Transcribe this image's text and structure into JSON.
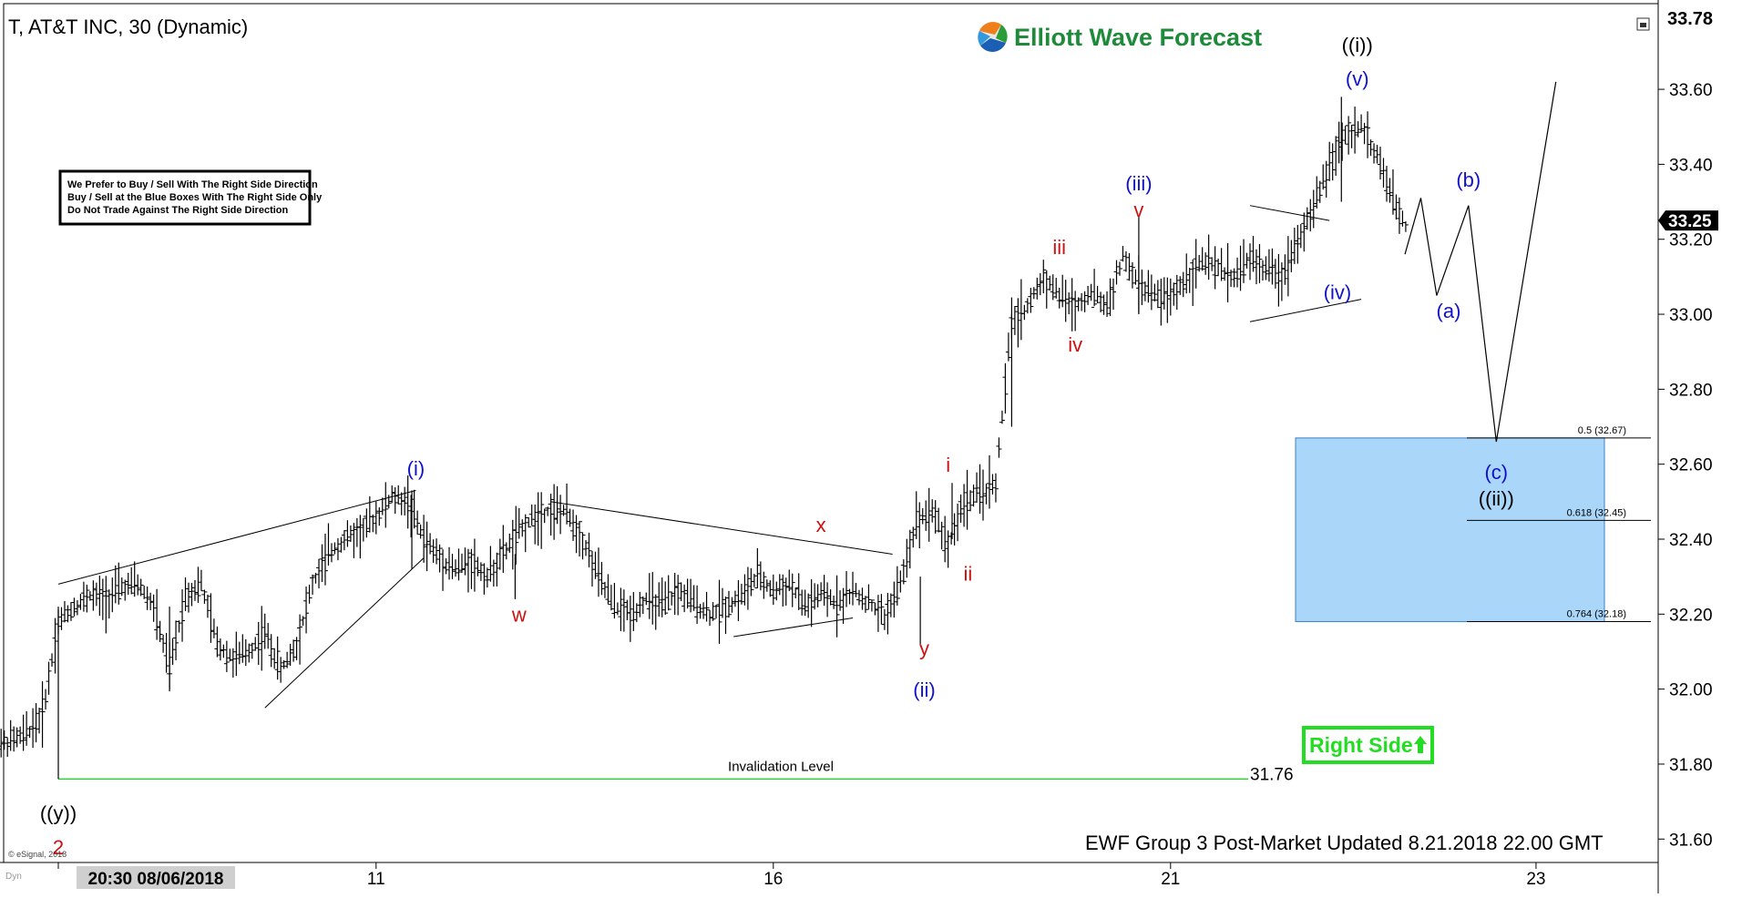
{
  "header": {
    "symbol_title": "T, AT&T INC, 30 (Dynamic)",
    "brand": "Elliott Wave Forecast",
    "footer_update": "EWF Group 3 Post-Market Updated 8.21.2018 22.00 GMT",
    "copyright": "© eSignal, 2018",
    "corner_tag": "Dyn"
  },
  "notice_box": {
    "lines": [
      "We Prefer to Buy / Sell With The Right Side Direction",
      "Buy / Sell at the Blue Boxes With The Right Side Only",
      "Do Not Trade Against The Right Side Direction"
    ]
  },
  "right_side_badge": {
    "label": "Right Side",
    "arrow": "up-arrow-icon"
  },
  "colors": {
    "blue_label": "#1111cc",
    "red_label": "#cc1111",
    "box_fill": "#a9d6f9",
    "box_stroke": "#3a80c8",
    "invalidation_line": "#33cc33",
    "badge_green": "#22dd22",
    "bar": "#000000"
  },
  "chart_data": {
    "type": "ohlc",
    "ylim": [
      31.53,
      33.78
    ],
    "y_ticks": [
      "33.60",
      "33.40",
      "33.20",
      "33.00",
      "32.80",
      "32.60",
      "32.40",
      "32.20",
      "32.00",
      "31.80",
      "31.60"
    ],
    "y_top_label": "33.78",
    "last_price": "33.25",
    "x_ticks": [
      {
        "label": "20:30 08/06/2018",
        "t": 0
      },
      {
        "label": "11",
        "t": 4
      },
      {
        "label": "16",
        "t": 9
      },
      {
        "label": "21",
        "t": 14
      },
      {
        "label": "23",
        "t": 18.6
      }
    ],
    "invalidation": {
      "label": "Invalidation Level",
      "value": 31.76,
      "value_label": "31.76"
    },
    "blue_box": {
      "top": 32.67,
      "bottom": 32.18,
      "fib_levels": [
        {
          "value": 32.67,
          "label": "0.5 (32.67)"
        },
        {
          "value": 32.45,
          "label": "0.618 (32.45)"
        },
        {
          "value": 32.18,
          "label": "0.764 (32.18)"
        }
      ]
    },
    "price_path": [
      [
        -0.8,
        31.85
      ],
      [
        -0.6,
        31.86
      ],
      [
        -0.4,
        31.88
      ],
      [
        -0.2,
        31.93
      ],
      [
        0.0,
        32.18
      ],
      [
        0.2,
        32.22
      ],
      [
        0.4,
        32.25
      ],
      [
        0.6,
        32.24
      ],
      [
        0.8,
        32.27
      ],
      [
        1.0,
        32.28
      ],
      [
        1.2,
        32.22
      ],
      [
        1.4,
        32.05
      ],
      [
        1.6,
        32.25
      ],
      [
        1.8,
        32.28
      ],
      [
        2.0,
        32.12
      ],
      [
        2.2,
        32.08
      ],
      [
        2.4,
        32.1
      ],
      [
        2.6,
        32.15
      ],
      [
        2.8,
        32.05
      ],
      [
        3.0,
        32.12
      ],
      [
        3.2,
        32.28
      ],
      [
        3.4,
        32.36
      ],
      [
        3.6,
        32.4
      ],
      [
        3.8,
        32.42
      ],
      [
        4.0,
        32.46
      ],
      [
        4.2,
        32.51
      ],
      [
        4.4,
        32.5
      ],
      [
        4.6,
        32.4
      ],
      [
        4.8,
        32.35
      ],
      [
        5.0,
        32.32
      ],
      [
        5.2,
        32.34
      ],
      [
        5.4,
        32.3
      ],
      [
        5.6,
        32.36
      ],
      [
        5.8,
        32.42
      ],
      [
        6.0,
        32.46
      ],
      [
        6.2,
        32.48
      ],
      [
        6.4,
        32.47
      ],
      [
        6.6,
        32.4
      ],
      [
        6.8,
        32.3
      ],
      [
        7.0,
        32.22
      ],
      [
        7.2,
        32.2
      ],
      [
        7.4,
        32.24
      ],
      [
        7.6,
        32.22
      ],
      [
        7.8,
        32.26
      ],
      [
        8.0,
        32.23
      ],
      [
        8.2,
        32.2
      ],
      [
        8.4,
        32.22
      ],
      [
        8.6,
        32.25
      ],
      [
        8.8,
        32.3
      ],
      [
        9.0,
        32.26
      ],
      [
        9.2,
        32.28
      ],
      [
        9.4,
        32.22
      ],
      [
        9.6,
        32.25
      ],
      [
        9.8,
        32.23
      ],
      [
        10.0,
        32.26
      ],
      [
        10.2,
        32.23
      ],
      [
        10.4,
        32.19
      ],
      [
        10.6,
        32.28
      ],
      [
        10.8,
        32.45
      ],
      [
        11.0,
        32.48
      ],
      [
        11.2,
        32.38
      ],
      [
        11.4,
        32.5
      ],
      [
        11.6,
        32.52
      ],
      [
        11.8,
        32.55
      ],
      [
        12.0,
        32.98
      ],
      [
        12.2,
        33.02
      ],
      [
        12.4,
        33.1
      ],
      [
        12.6,
        33.05
      ],
      [
        12.8,
        33.02
      ],
      [
        13.0,
        33.06
      ],
      [
        13.2,
        33.02
      ],
      [
        13.4,
        33.15
      ],
      [
        13.6,
        33.08
      ],
      [
        13.8,
        33.05
      ],
      [
        14.0,
        33.04
      ],
      [
        14.2,
        33.1
      ],
      [
        14.4,
        33.14
      ],
      [
        14.6,
        33.12
      ],
      [
        14.8,
        33.1
      ],
      [
        15.0,
        33.15
      ],
      [
        15.2,
        33.12
      ],
      [
        15.4,
        33.1
      ],
      [
        15.6,
        33.2
      ],
      [
        15.8,
        33.28
      ],
      [
        16.0,
        33.4
      ],
      [
        16.2,
        33.48
      ],
      [
        16.4,
        33.5
      ],
      [
        16.6,
        33.42
      ],
      [
        16.8,
        33.3
      ],
      [
        17.0,
        33.22
      ]
    ],
    "projection": [
      [
        16.95,
        33.16
      ],
      [
        17.15,
        33.31
      ],
      [
        17.35,
        33.05
      ],
      [
        17.75,
        33.29
      ],
      [
        18.1,
        32.66
      ],
      [
        18.85,
        33.62
      ]
    ],
    "trendlines": [
      {
        "from": [
          0.0,
          32.28
        ],
        "to": [
          4.5,
          32.53
        ]
      },
      {
        "from": [
          2.6,
          31.95
        ],
        "to": [
          4.6,
          32.35
        ]
      },
      {
        "from": [
          6.2,
          32.5
        ],
        "to": [
          10.5,
          32.36
        ]
      },
      {
        "from": [
          8.5,
          32.14
        ],
        "to": [
          10.0,
          32.19
        ]
      },
      {
        "from": [
          15.0,
          33.29
        ],
        "to": [
          16.0,
          33.25
        ]
      },
      {
        "from": [
          15.0,
          32.98
        ],
        "to": [
          16.4,
          33.04
        ]
      }
    ],
    "wave_labels": [
      {
        "text": "(i)",
        "t": 4.5,
        "v": 32.57,
        "color": "blue"
      },
      {
        "text": "w",
        "t": 5.8,
        "v": 32.18,
        "color": "red"
      },
      {
        "text": "x",
        "t": 9.6,
        "v": 32.42,
        "color": "red"
      },
      {
        "text": "y",
        "t": 10.9,
        "v": 32.09,
        "color": "red"
      },
      {
        "text": "(ii)",
        "t": 10.9,
        "v": 31.98,
        "color": "blue"
      },
      {
        "text": "i",
        "t": 11.2,
        "v": 32.58,
        "color": "red"
      },
      {
        "text": "ii",
        "t": 11.45,
        "v": 32.29,
        "color": "red"
      },
      {
        "text": "iii",
        "t": 12.6,
        "v": 33.16,
        "color": "red"
      },
      {
        "text": "iv",
        "t": 12.8,
        "v": 32.9,
        "color": "red"
      },
      {
        "text": "(iii)",
        "t": 13.6,
        "v": 33.33,
        "color": "blue"
      },
      {
        "text": "v",
        "t": 13.6,
        "v": 33.26,
        "color": "red"
      },
      {
        "text": "(iv)",
        "t": 16.1,
        "v": 33.04,
        "color": "blue"
      },
      {
        "text": "(v)",
        "t": 16.35,
        "v": 33.61,
        "color": "blue"
      },
      {
        "text": "((i))",
        "t": 16.35,
        "v": 33.7,
        "color": "black"
      },
      {
        "text": "(a)",
        "t": 17.5,
        "v": 32.99,
        "color": "blue"
      },
      {
        "text": "(b)",
        "t": 17.75,
        "v": 33.34,
        "color": "blue"
      },
      {
        "text": "(c)",
        "t": 18.1,
        "v": 32.56,
        "color": "blue"
      },
      {
        "text": "((ii))",
        "t": 18.1,
        "v": 32.49,
        "color": "black"
      },
      {
        "text": "((y))",
        "t": 0.0,
        "v": 31.65,
        "color": "black"
      },
      {
        "text": "2",
        "t": 0.0,
        "v": 31.56,
        "color": "red"
      }
    ]
  }
}
